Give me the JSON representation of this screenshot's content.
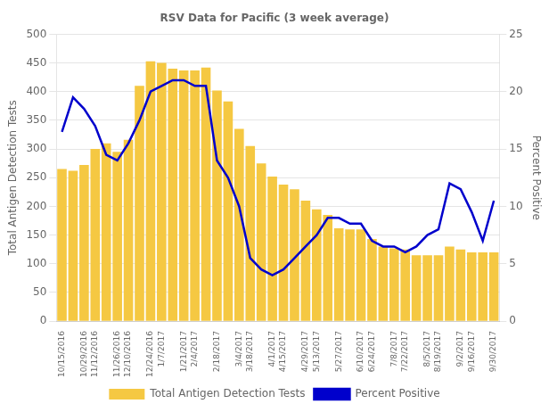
{
  "chart_data": {
    "type": "bar",
    "title": "RSV Data for Pacific (3 week average)",
    "ylabel": "Total Antigen Detection Tests",
    "y2label": "Percent Positive",
    "ylim": [
      0,
      500
    ],
    "yticks": [
      0,
      50,
      100,
      150,
      200,
      250,
      300,
      350,
      400,
      450,
      500
    ],
    "y2lim": [
      0,
      25
    ],
    "y2ticks": [
      0,
      5,
      10,
      15,
      20,
      25
    ],
    "grid": true,
    "legend": "bottom",
    "categories": [
      "10/15/2016",
      null,
      "10/29/2016",
      "11/12/2016",
      null,
      "11/26/2016",
      "12/10/2016",
      null,
      "12/24/2016",
      "1/7/2017",
      null,
      "1/21/2017",
      "2/4/2017",
      null,
      "2/18/2017",
      null,
      "3/4/2017",
      "3/18/2017",
      null,
      "4/1/2017",
      "4/15/2017",
      null,
      "4/29/2017",
      "5/13/2017",
      null,
      "5/27/2017",
      null,
      "6/10/2017",
      "6/24/2017",
      null,
      "7/8/2017",
      "7/22/2017",
      null,
      "8/5/2017",
      "8/19/2017",
      null,
      "9/2/2017",
      "9/16/2017",
      null,
      "9/30/2017"
    ],
    "series": [
      {
        "name": "Total Antigen Detection Tests",
        "type": "bar",
        "color": "#F5C842",
        "values": [
          265,
          262,
          272,
          300,
          310,
          295,
          316,
          410,
          453,
          450,
          440,
          437,
          437,
          442,
          402,
          383,
          335,
          305,
          275,
          252,
          238,
          230,
          210,
          195,
          185,
          162,
          160,
          160,
          143,
          130,
          127,
          125,
          115,
          115,
          115,
          130,
          125,
          120,
          120,
          120
        ]
      },
      {
        "name": "Percent Positive",
        "type": "line",
        "axis": "y2",
        "color": "#0000CC",
        "values": [
          16.5,
          19.5,
          18.5,
          17.0,
          14.5,
          14.0,
          15.5,
          17.5,
          20.0,
          20.5,
          21.0,
          21.0,
          20.5,
          20.5,
          14.0,
          12.5,
          10.0,
          5.5,
          4.5,
          4.0,
          4.5,
          5.5,
          6.5,
          7.5,
          9.0,
          9.0,
          8.5,
          8.5,
          7.0,
          6.5,
          6.5,
          6.0,
          6.5,
          7.5,
          8.0,
          12.0,
          11.5,
          9.5,
          7.0,
          10.5
        ]
      }
    ]
  }
}
